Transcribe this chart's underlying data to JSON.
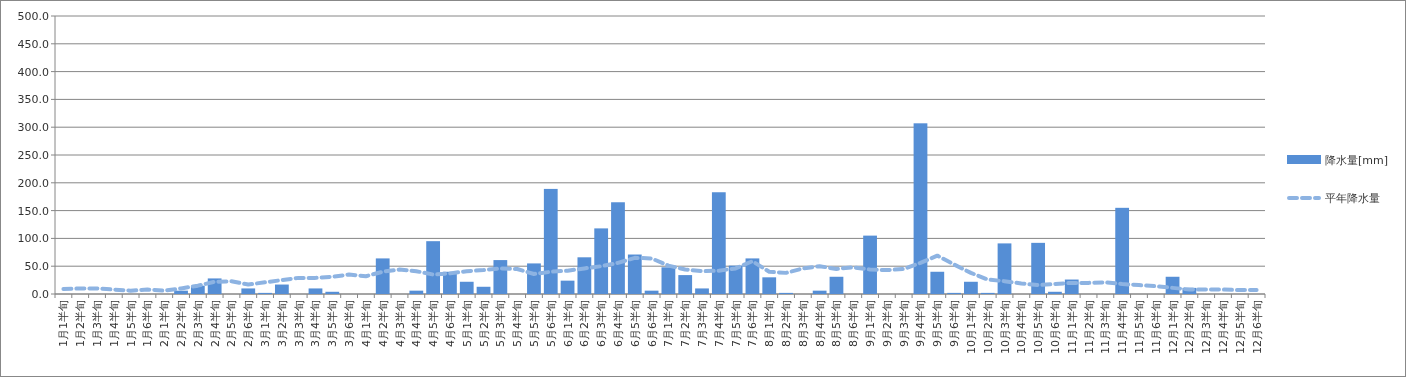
{
  "chart_data": {
    "type": "bar",
    "categories": [
      "1月1半旬",
      "1月2半旬",
      "1月3半旬",
      "1月4半旬",
      "1月5半旬",
      "1月6半旬",
      "2月1半旬",
      "2月2半旬",
      "2月3半旬",
      "2月4半旬",
      "2月5半旬",
      "2月6半旬",
      "3月1半旬",
      "3月2半旬",
      "3月3半旬",
      "3月4半旬",
      "3月5半旬",
      "3月6半旬",
      "4月1半旬",
      "4月2半旬",
      "4月3半旬",
      "4月4半旬",
      "4月5半旬",
      "4月6半旬",
      "5月1半旬",
      "5月2半旬",
      "5月3半旬",
      "5月4半旬",
      "5月5半旬",
      "5月6半旬",
      "6月1半旬",
      "6月2半旬",
      "6月3半旬",
      "6月4半旬",
      "6月5半旬",
      "6月6半旬",
      "7月1半旬",
      "7月2半旬",
      "7月3半旬",
      "7月4半旬",
      "7月5半旬",
      "7月6半旬",
      "8月1半旬",
      "8月2半旬",
      "8月3半旬",
      "8月4半旬",
      "8月5半旬",
      "8月6半旬",
      "9月1半旬",
      "9月2半旬",
      "9月3半旬",
      "9月4半旬",
      "9月5半旬",
      "9月6半旬",
      "10月1半旬",
      "10月2半旬",
      "10月3半旬",
      "10月4半旬",
      "10月5半旬",
      "10月6半旬",
      "11月1半旬",
      "11月2半旬",
      "11月3半旬",
      "11月4半旬",
      "11月5半旬",
      "11月6半旬",
      "12月1半旬",
      "12月2半旬",
      "12月3半旬",
      "12月4半旬",
      "12月5半旬",
      "12月6半旬"
    ],
    "series": [
      {
        "name": "降水量[mm]",
        "color": "#558ed5",
        "values": [
          0,
          0,
          0,
          0,
          0,
          0,
          0,
          6,
          15,
          28,
          0,
          10,
          2,
          17,
          0,
          10,
          4,
          0,
          0,
          64,
          0,
          6,
          95,
          40,
          22,
          13,
          61,
          0,
          55,
          189,
          24,
          66,
          118,
          165,
          71,
          6,
          48,
          34,
          10,
          183,
          51,
          64,
          30,
          2,
          0,
          6,
          31,
          0,
          105,
          0,
          0,
          307,
          40,
          2,
          22,
          2,
          91,
          0,
          92,
          4,
          26,
          0,
          0,
          155,
          0,
          0,
          31,
          11,
          0,
          0,
          0,
          0
        ]
      },
      {
        "name": "平年降水量",
        "type": "line",
        "line_style": "dashed",
        "color": "#8db3e2",
        "values": [
          9,
          10,
          10,
          8,
          6,
          8,
          6,
          10,
          15,
          22,
          23,
          17,
          21,
          25,
          29,
          29,
          31,
          35,
          32,
          40,
          44,
          41,
          35,
          37,
          41,
          43,
          46,
          45,
          36,
          40,
          42,
          46,
          50,
          56,
          65,
          64,
          51,
          44,
          41,
          42,
          46,
          59,
          40,
          38,
          46,
          50,
          45,
          48,
          44,
          43,
          45,
          56,
          69,
          53,
          38,
          26,
          23,
          19,
          16,
          18,
          20,
          20,
          21,
          18,
          16,
          14,
          11,
          8,
          8,
          8,
          7,
          7
        ]
      }
    ],
    "ylim": [
      0,
      500
    ],
    "yticks": [
      {
        "value": 0,
        "label": "0.0"
      },
      {
        "value": 50,
        "label": "50.0"
      },
      {
        "value": 100,
        "label": "100.0"
      },
      {
        "value": 150,
        "label": "150.0"
      },
      {
        "value": 200,
        "label": "200.0"
      },
      {
        "value": 250,
        "label": "250.0"
      },
      {
        "value": 300,
        "label": "300.0"
      },
      {
        "value": 350,
        "label": "350.0"
      },
      {
        "value": 400,
        "label": "400.0"
      },
      {
        "value": 450,
        "label": "450.0"
      },
      {
        "value": 500,
        "label": "500.0"
      }
    ],
    "grid": "y",
    "legend": "right"
  }
}
